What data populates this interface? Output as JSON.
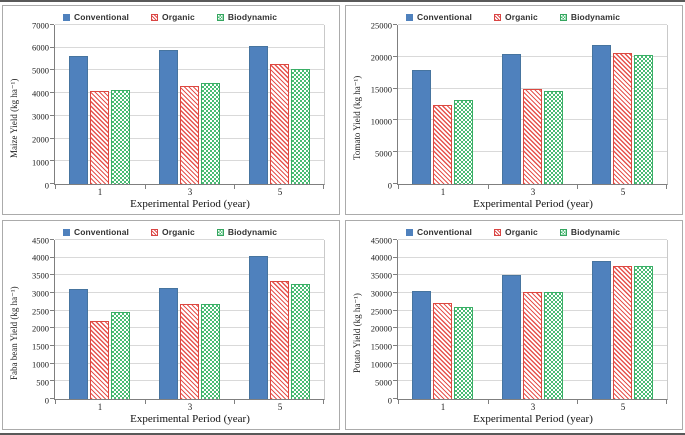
{
  "figure": {
    "legend": [
      {
        "name": "Conventional",
        "color": "#4F81BD",
        "pattern": "solid"
      },
      {
        "name": "Organic",
        "color": "#E0484A",
        "pattern": "diagonal-hatch"
      },
      {
        "name": "Biodynamic",
        "color": "#43B96E",
        "pattern": "checker"
      }
    ],
    "colors": {
      "conventional": "#4F81BD",
      "organic": "#E0484A",
      "biodynamic": "#43B96E",
      "gridline": "#d9d9d9",
      "axis": "#7f7f7f"
    }
  },
  "chart_data": [
    {
      "type": "bar",
      "title": "",
      "ylabel": "Maize Yield (kg ha⁻¹)",
      "xlabel": "Experimental Period (year)",
      "categories": [
        "1",
        "3",
        "5"
      ],
      "ylim": [
        0,
        7000
      ],
      "ystep": 1000,
      "yticks": [
        0,
        1000,
        2000,
        3000,
        4000,
        5000,
        6000,
        7000
      ],
      "grid": true,
      "legend_position": "top",
      "series": [
        {
          "name": "Conventional",
          "values": [
            5650,
            5890,
            6060
          ]
        },
        {
          "name": "Organic",
          "values": [
            4080,
            4300,
            5300
          ]
        },
        {
          "name": "Biodynamic",
          "values": [
            4150,
            4450,
            5050
          ]
        }
      ]
    },
    {
      "type": "bar",
      "title": "",
      "ylabel": "Tomato Yield (kg ha⁻¹)",
      "xlabel": "Experimental Period (year)",
      "categories": [
        "1",
        "3",
        "5"
      ],
      "ylim": [
        0,
        25000
      ],
      "ystep": 5000,
      "yticks": [
        0,
        5000,
        10000,
        15000,
        20000,
        25000
      ],
      "grid": true,
      "legend_position": "top",
      "series": [
        {
          "name": "Conventional",
          "values": [
            18000,
            20400,
            21900
          ]
        },
        {
          "name": "Organic",
          "values": [
            12400,
            15000,
            20600
          ]
        },
        {
          "name": "Biodynamic",
          "values": [
            13250,
            14700,
            20350
          ]
        }
      ]
    },
    {
      "type": "bar",
      "title": "",
      "ylabel": "Faba bean Yield (kg ha⁻¹)",
      "xlabel": "Experimental Period (year)",
      "categories": [
        "1",
        "3",
        "5"
      ],
      "ylim": [
        0,
        4500
      ],
      "ystep": 500,
      "yticks": [
        0,
        500,
        1000,
        1500,
        2000,
        2500,
        3000,
        3500,
        4000,
        4500
      ],
      "grid": true,
      "legend_position": "top",
      "series": [
        {
          "name": "Conventional",
          "values": [
            3100,
            3150,
            4050
          ]
        },
        {
          "name": "Organic",
          "values": [
            2200,
            2700,
            3350
          ]
        },
        {
          "name": "Biodynamic",
          "values": [
            2450,
            2700,
            3250
          ]
        }
      ]
    },
    {
      "type": "bar",
      "title": "",
      "ylabel": "Potato Yield (kg ha⁻¹)",
      "xlabel": "Experimental Period (year)",
      "categories": [
        "1",
        "3",
        "5"
      ],
      "ylim": [
        0,
        45000
      ],
      "ystep": 5000,
      "yticks": [
        0,
        5000,
        10000,
        15000,
        20000,
        25000,
        30000,
        35000,
        40000,
        45000
      ],
      "grid": true,
      "legend_position": "top",
      "series": [
        {
          "name": "Conventional",
          "values": [
            30700,
            35200,
            39000
          ]
        },
        {
          "name": "Organic",
          "values": [
            27200,
            30300,
            37700
          ]
        },
        {
          "name": "Biodynamic",
          "values": [
            26100,
            30300,
            37700
          ]
        }
      ]
    }
  ]
}
